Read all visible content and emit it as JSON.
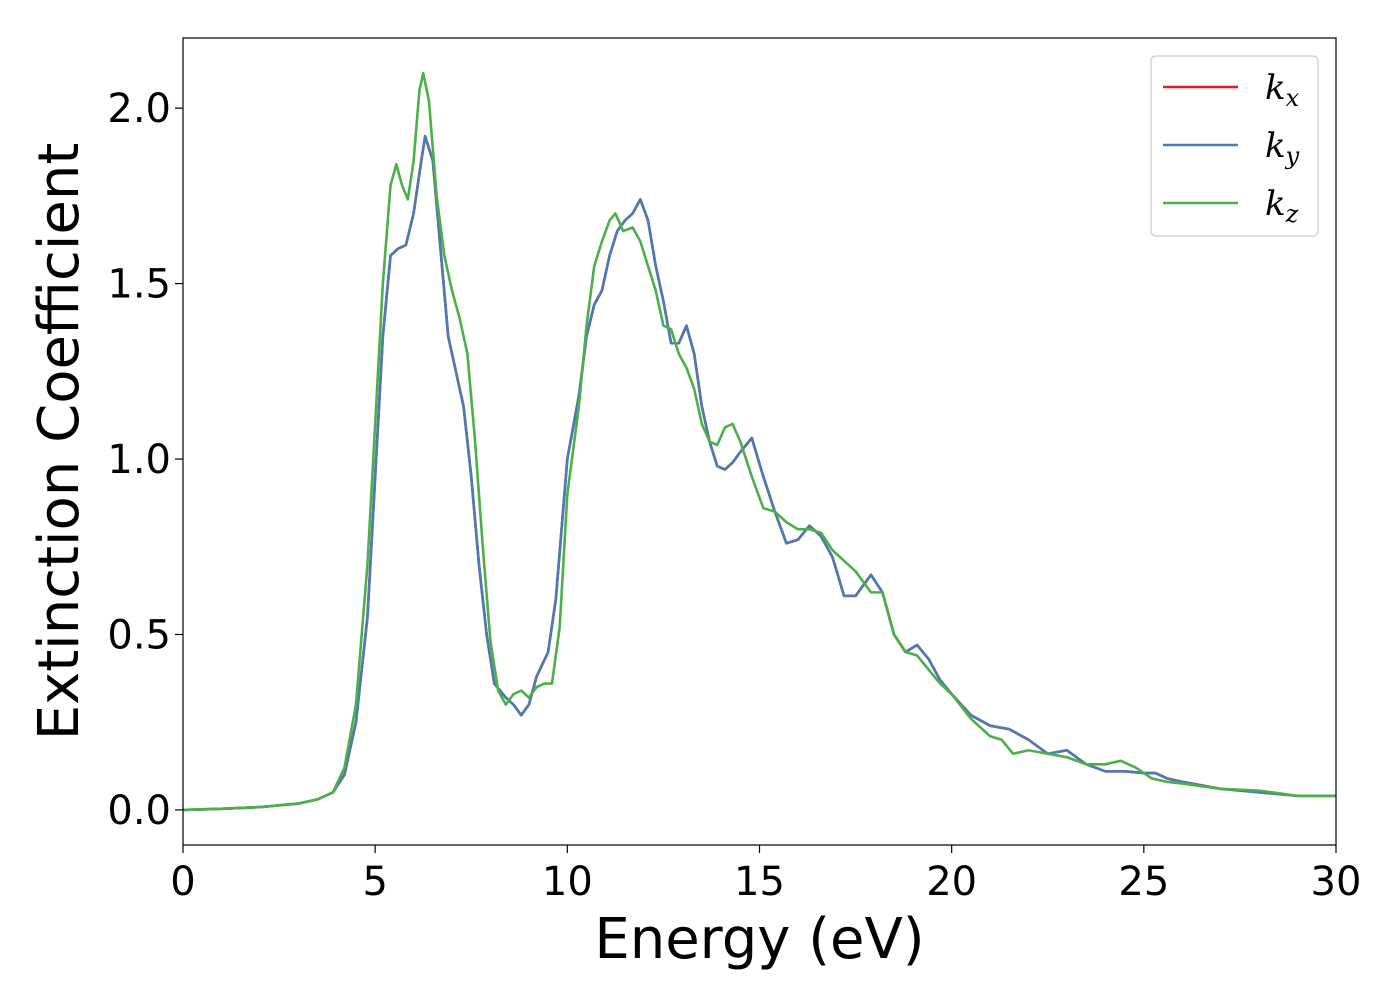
{
  "chart_data": {
    "type": "line",
    "xlabel": "Energy (eV)",
    "ylabel": "Extinction Coefficient",
    "xlim": [
      0,
      30
    ],
    "ylim": [
      -0.1,
      2.2
    ],
    "xticks": [
      "0",
      "5",
      "10",
      "15",
      "20",
      "25",
      "30"
    ],
    "xtick_values": [
      0,
      5,
      10,
      15,
      20,
      25,
      30
    ],
    "yticks": [
      "0.0",
      "0.5",
      "1.0",
      "1.5",
      "2.0"
    ],
    "ytick_values": [
      0,
      0.5,
      1.0,
      1.5,
      2.0
    ],
    "grid": false,
    "legend_position": "top-right",
    "series": [
      {
        "name": "k",
        "subscript": "x",
        "color": "#e41a1c",
        "points": [
          [
            0,
            0
          ],
          [
            1,
            0.003
          ],
          [
            2,
            0.008
          ],
          [
            3,
            0.018
          ],
          [
            3.5,
            0.03
          ],
          [
            3.9,
            0.05
          ],
          [
            4.2,
            0.1
          ],
          [
            4.5,
            0.25
          ],
          [
            4.8,
            0.55
          ],
          [
            5.0,
            0.95
          ],
          [
            5.2,
            1.35
          ],
          [
            5.4,
            1.58
          ],
          [
            5.6,
            1.6
          ],
          [
            5.8,
            1.61
          ],
          [
            6.0,
            1.7
          ],
          [
            6.2,
            1.85
          ],
          [
            6.3,
            1.92
          ],
          [
            6.5,
            1.85
          ],
          [
            6.7,
            1.6
          ],
          [
            6.9,
            1.35
          ],
          [
            7.1,
            1.25
          ],
          [
            7.3,
            1.15
          ],
          [
            7.5,
            0.95
          ],
          [
            7.7,
            0.7
          ],
          [
            7.9,
            0.5
          ],
          [
            8.1,
            0.36
          ],
          [
            8.4,
            0.32
          ],
          [
            8.6,
            0.3
          ],
          [
            8.8,
            0.27
          ],
          [
            9.0,
            0.3
          ],
          [
            9.2,
            0.38
          ],
          [
            9.5,
            0.45
          ],
          [
            9.7,
            0.6
          ],
          [
            10.0,
            1.0
          ],
          [
            10.3,
            1.18
          ],
          [
            10.5,
            1.35
          ],
          [
            10.7,
            1.44
          ],
          [
            10.9,
            1.48
          ],
          [
            11.1,
            1.58
          ],
          [
            11.3,
            1.65
          ],
          [
            11.5,
            1.68
          ],
          [
            11.7,
            1.7
          ],
          [
            11.9,
            1.74
          ],
          [
            12.1,
            1.68
          ],
          [
            12.3,
            1.55
          ],
          [
            12.5,
            1.45
          ],
          [
            12.7,
            1.33
          ],
          [
            12.9,
            1.33
          ],
          [
            13.1,
            1.38
          ],
          [
            13.3,
            1.3
          ],
          [
            13.5,
            1.15
          ],
          [
            13.7,
            1.05
          ],
          [
            13.9,
            0.98
          ],
          [
            14.1,
            0.97
          ],
          [
            14.3,
            0.99
          ],
          [
            14.5,
            1.02
          ],
          [
            14.8,
            1.06
          ],
          [
            15.1,
            0.95
          ],
          [
            15.4,
            0.85
          ],
          [
            15.7,
            0.76
          ],
          [
            16.0,
            0.77
          ],
          [
            16.3,
            0.81
          ],
          [
            16.6,
            0.78
          ],
          [
            16.9,
            0.72
          ],
          [
            17.2,
            0.61
          ],
          [
            17.5,
            0.61
          ],
          [
            17.9,
            0.67
          ],
          [
            18.2,
            0.62
          ],
          [
            18.5,
            0.5
          ],
          [
            18.8,
            0.45
          ],
          [
            19.1,
            0.47
          ],
          [
            19.4,
            0.43
          ],
          [
            19.7,
            0.37
          ],
          [
            20.0,
            0.33
          ],
          [
            20.5,
            0.27
          ],
          [
            21.0,
            0.24
          ],
          [
            21.5,
            0.23
          ],
          [
            22.0,
            0.2
          ],
          [
            22.5,
            0.16
          ],
          [
            23.0,
            0.17
          ],
          [
            23.5,
            0.13
          ],
          [
            24.0,
            0.11
          ],
          [
            24.5,
            0.11
          ],
          [
            25.0,
            0.105
          ],
          [
            25.3,
            0.105
          ],
          [
            25.6,
            0.09
          ],
          [
            26.0,
            0.08
          ],
          [
            27.0,
            0.06
          ],
          [
            28.0,
            0.05
          ],
          [
            29.0,
            0.04
          ],
          [
            30.0,
            0.04
          ]
        ]
      },
      {
        "name": "k",
        "subscript": "y",
        "color": "#4a7bb5",
        "points": [
          [
            0,
            0
          ],
          [
            1,
            0.003
          ],
          [
            2,
            0.008
          ],
          [
            3,
            0.018
          ],
          [
            3.5,
            0.03
          ],
          [
            3.9,
            0.05
          ],
          [
            4.2,
            0.1
          ],
          [
            4.5,
            0.25
          ],
          [
            4.8,
            0.55
          ],
          [
            5.0,
            0.95
          ],
          [
            5.2,
            1.35
          ],
          [
            5.4,
            1.58
          ],
          [
            5.6,
            1.6
          ],
          [
            5.8,
            1.61
          ],
          [
            6.0,
            1.7
          ],
          [
            6.2,
            1.85
          ],
          [
            6.3,
            1.92
          ],
          [
            6.5,
            1.85
          ],
          [
            6.7,
            1.6
          ],
          [
            6.9,
            1.35
          ],
          [
            7.1,
            1.25
          ],
          [
            7.3,
            1.15
          ],
          [
            7.5,
            0.95
          ],
          [
            7.7,
            0.7
          ],
          [
            7.9,
            0.5
          ],
          [
            8.1,
            0.36
          ],
          [
            8.4,
            0.32
          ],
          [
            8.6,
            0.3
          ],
          [
            8.8,
            0.27
          ],
          [
            9.0,
            0.3
          ],
          [
            9.2,
            0.38
          ],
          [
            9.5,
            0.45
          ],
          [
            9.7,
            0.6
          ],
          [
            10.0,
            1.0
          ],
          [
            10.3,
            1.18
          ],
          [
            10.5,
            1.35
          ],
          [
            10.7,
            1.44
          ],
          [
            10.9,
            1.48
          ],
          [
            11.1,
            1.58
          ],
          [
            11.3,
            1.65
          ],
          [
            11.5,
            1.68
          ],
          [
            11.7,
            1.7
          ],
          [
            11.9,
            1.74
          ],
          [
            12.1,
            1.68
          ],
          [
            12.3,
            1.55
          ],
          [
            12.5,
            1.45
          ],
          [
            12.7,
            1.33
          ],
          [
            12.9,
            1.33
          ],
          [
            13.1,
            1.38
          ],
          [
            13.3,
            1.3
          ],
          [
            13.5,
            1.15
          ],
          [
            13.7,
            1.05
          ],
          [
            13.9,
            0.98
          ],
          [
            14.1,
            0.97
          ],
          [
            14.3,
            0.99
          ],
          [
            14.5,
            1.02
          ],
          [
            14.8,
            1.06
          ],
          [
            15.1,
            0.95
          ],
          [
            15.4,
            0.85
          ],
          [
            15.7,
            0.76
          ],
          [
            16.0,
            0.77
          ],
          [
            16.3,
            0.81
          ],
          [
            16.6,
            0.78
          ],
          [
            16.9,
            0.72
          ],
          [
            17.2,
            0.61
          ],
          [
            17.5,
            0.61
          ],
          [
            17.9,
            0.67
          ],
          [
            18.2,
            0.62
          ],
          [
            18.5,
            0.5
          ],
          [
            18.8,
            0.45
          ],
          [
            19.1,
            0.47
          ],
          [
            19.4,
            0.43
          ],
          [
            19.7,
            0.37
          ],
          [
            20.0,
            0.33
          ],
          [
            20.5,
            0.27
          ],
          [
            21.0,
            0.24
          ],
          [
            21.5,
            0.23
          ],
          [
            22.0,
            0.2
          ],
          [
            22.5,
            0.16
          ],
          [
            23.0,
            0.17
          ],
          [
            23.5,
            0.13
          ],
          [
            24.0,
            0.11
          ],
          [
            24.5,
            0.11
          ],
          [
            25.0,
            0.105
          ],
          [
            25.3,
            0.105
          ],
          [
            25.6,
            0.09
          ],
          [
            26.0,
            0.08
          ],
          [
            27.0,
            0.06
          ],
          [
            28.0,
            0.05
          ],
          [
            29.0,
            0.04
          ],
          [
            30.0,
            0.04
          ]
        ]
      },
      {
        "name": "k",
        "subscript": "z",
        "color": "#4daf4a",
        "points": [
          [
            0,
            0
          ],
          [
            1,
            0.003
          ],
          [
            2,
            0.008
          ],
          [
            3,
            0.018
          ],
          [
            3.5,
            0.03
          ],
          [
            3.9,
            0.05
          ],
          [
            4.2,
            0.12
          ],
          [
            4.5,
            0.3
          ],
          [
            4.8,
            0.7
          ],
          [
            5.0,
            1.1
          ],
          [
            5.2,
            1.5
          ],
          [
            5.4,
            1.78
          ],
          [
            5.55,
            1.84
          ],
          [
            5.7,
            1.78
          ],
          [
            5.85,
            1.74
          ],
          [
            6.0,
            1.85
          ],
          [
            6.15,
            2.05
          ],
          [
            6.25,
            2.1
          ],
          [
            6.4,
            2.02
          ],
          [
            6.6,
            1.75
          ],
          [
            6.8,
            1.58
          ],
          [
            7.0,
            1.48
          ],
          [
            7.2,
            1.4
          ],
          [
            7.4,
            1.3
          ],
          [
            7.6,
            1.05
          ],
          [
            7.8,
            0.75
          ],
          [
            8.0,
            0.48
          ],
          [
            8.2,
            0.34
          ],
          [
            8.4,
            0.3
          ],
          [
            8.6,
            0.33
          ],
          [
            8.8,
            0.34
          ],
          [
            9.0,
            0.32
          ],
          [
            9.2,
            0.35
          ],
          [
            9.4,
            0.36
          ],
          [
            9.6,
            0.36
          ],
          [
            9.8,
            0.52
          ],
          [
            10.0,
            0.9
          ],
          [
            10.3,
            1.15
          ],
          [
            10.5,
            1.38
          ],
          [
            10.7,
            1.55
          ],
          [
            10.9,
            1.62
          ],
          [
            11.1,
            1.68
          ],
          [
            11.25,
            1.7
          ],
          [
            11.45,
            1.65
          ],
          [
            11.7,
            1.66
          ],
          [
            11.9,
            1.62
          ],
          [
            12.1,
            1.55
          ],
          [
            12.3,
            1.48
          ],
          [
            12.5,
            1.38
          ],
          [
            12.7,
            1.37
          ],
          [
            12.9,
            1.3
          ],
          [
            13.1,
            1.26
          ],
          [
            13.3,
            1.2
          ],
          [
            13.5,
            1.1
          ],
          [
            13.7,
            1.05
          ],
          [
            13.9,
            1.04
          ],
          [
            14.1,
            1.09
          ],
          [
            14.3,
            1.1
          ],
          [
            14.5,
            1.05
          ],
          [
            14.8,
            0.95
          ],
          [
            15.1,
            0.86
          ],
          [
            15.4,
            0.85
          ],
          [
            15.7,
            0.82
          ],
          [
            16.0,
            0.8
          ],
          [
            16.3,
            0.8
          ],
          [
            16.6,
            0.79
          ],
          [
            16.9,
            0.74
          ],
          [
            17.2,
            0.71
          ],
          [
            17.5,
            0.68
          ],
          [
            17.9,
            0.62
          ],
          [
            18.2,
            0.62
          ],
          [
            18.5,
            0.5
          ],
          [
            18.8,
            0.45
          ],
          [
            19.1,
            0.44
          ],
          [
            19.4,
            0.4
          ],
          [
            19.7,
            0.36
          ],
          [
            20.0,
            0.33
          ],
          [
            20.5,
            0.26
          ],
          [
            21.0,
            0.21
          ],
          [
            21.3,
            0.2
          ],
          [
            21.6,
            0.16
          ],
          [
            22.0,
            0.17
          ],
          [
            22.5,
            0.16
          ],
          [
            23.0,
            0.15
          ],
          [
            23.5,
            0.13
          ],
          [
            24.0,
            0.13
          ],
          [
            24.4,
            0.14
          ],
          [
            24.8,
            0.12
          ],
          [
            25.2,
            0.09
          ],
          [
            25.6,
            0.08
          ],
          [
            26.0,
            0.075
          ],
          [
            27.0,
            0.06
          ],
          [
            28.0,
            0.055
          ],
          [
            29.0,
            0.04
          ],
          [
            30.0,
            0.04
          ]
        ]
      }
    ]
  }
}
